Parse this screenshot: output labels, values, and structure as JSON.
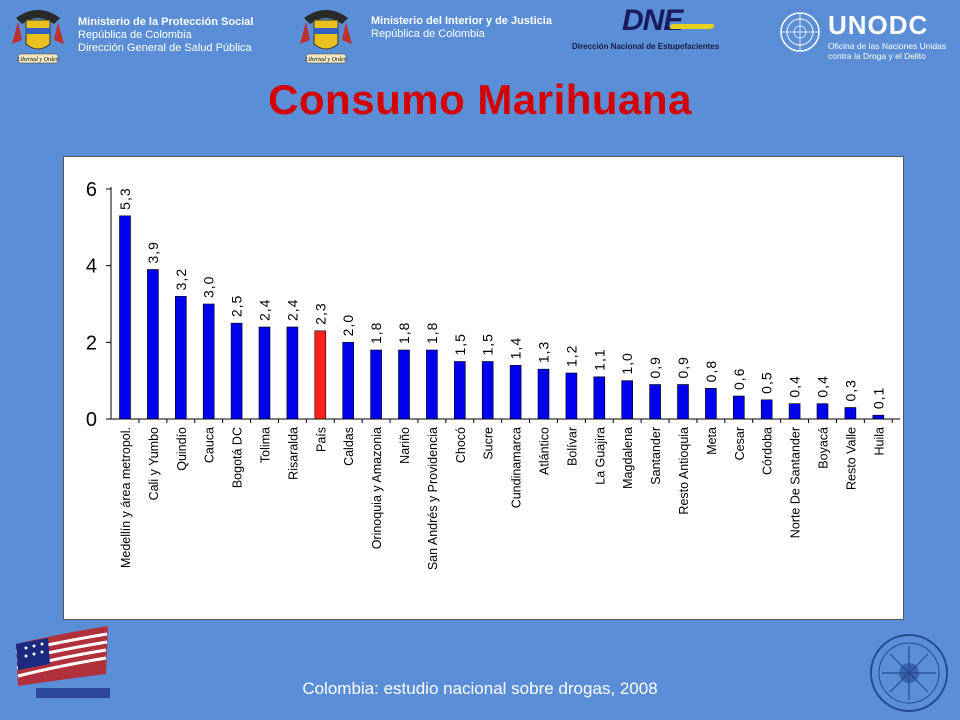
{
  "header": {
    "left_line1": "Ministerio de la Protección Social",
    "left_line2": "República de Colombia",
    "left_line3": "Dirección General de Salud Pública",
    "mid_line1": "Ministerio del Interior y de Justicia",
    "mid_line2": "República de Colombia",
    "crest_motto": "Libertad y Orden",
    "dne_logo": "DNE",
    "dne_name": "Dirección Nacional de Estupefacientes",
    "unodc_logo": "UNODC",
    "unodc_line1": "Oficina de las Naciones Unidas",
    "unodc_line2": "contra la Droga y el Delito"
  },
  "title": "Consumo Marihuana",
  "footer": "Colombia: estudio nacional sobre drogas, 2008",
  "colors": {
    "bar": "#0000ee",
    "highlight": "#ff2020",
    "title": "#d40000",
    "background": "#5a8fd8"
  },
  "chart_data": {
    "type": "bar",
    "categories": [
      "Medellín y área metropol.",
      "Cali y Yumbo",
      "Quindío",
      "Cauca",
      "Bogotá DC",
      "Tolima",
      "Risaralda",
      "País",
      "Caldas",
      "Orinoquia y Amazonia",
      "Nariño",
      "San Andrés y Providencia",
      "Chocó",
      "Sucre",
      "Cundinamarca",
      "Atlántico",
      "Bolívar",
      "La Guajira",
      "Magdalena",
      "Santander",
      "Resto Antioquia",
      "Meta",
      "Cesar",
      "Córdoba",
      "Norte De Santander",
      "Boyacá",
      "Resto Valle",
      "Huila"
    ],
    "values": [
      5.3,
      3.9,
      3.2,
      3.0,
      2.5,
      2.4,
      2.4,
      2.3,
      2.0,
      1.8,
      1.8,
      1.8,
      1.5,
      1.5,
      1.4,
      1.3,
      1.2,
      1.1,
      1.0,
      0.9,
      0.9,
      0.8,
      0.6,
      0.5,
      0.4,
      0.4,
      0.3,
      0.1
    ],
    "data_labels": [
      "5,3",
      "3,9",
      "3,2",
      "3,0",
      "2,5",
      "2,4",
      "2,4",
      "2,3",
      "2,0",
      "1,8",
      "1,8",
      "1,8",
      "1,5",
      "1,5",
      "1,4",
      "1,3",
      "1,2",
      "1,1",
      "1,0",
      "0,9",
      "0,9",
      "0,8",
      "0,6",
      "0,5",
      "0,4",
      "0,4",
      "0,3",
      "0,1"
    ],
    "highlight_category": "País",
    "yticks": [
      0,
      2,
      4,
      6
    ],
    "ylim": [
      0,
      6
    ],
    "grid": false,
    "legend": "none"
  }
}
